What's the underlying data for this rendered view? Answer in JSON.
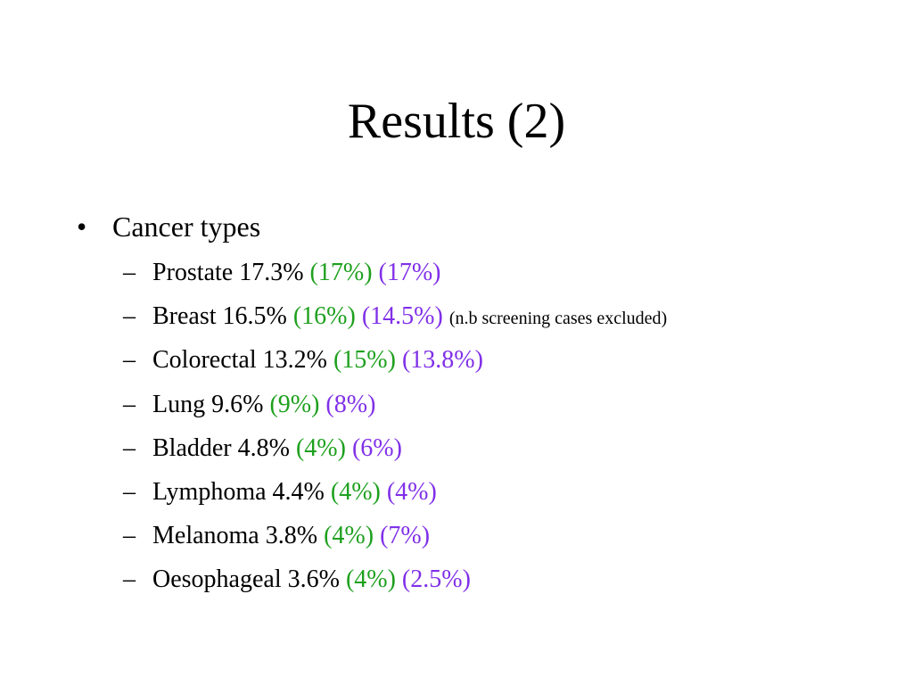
{
  "slide": {
    "title": "Results (2)",
    "bullet": {
      "marker": "•",
      "label": "Cancer types"
    },
    "sub_marker": "–",
    "colors": {
      "green_values": "#1ea01e",
      "purple_values": "#8030e8"
    },
    "items": [
      {
        "name": "Prostate",
        "value": "17.3%",
        "green": "(17%)",
        "purple": "(17%)",
        "note": ""
      },
      {
        "name": "Breast",
        "value": "16.5%",
        "green": "(16%)",
        "purple": "(14.5%)",
        "note": "(n.b screening cases excluded)"
      },
      {
        "name": "Colorectal",
        "value": "13.2%",
        "green": "(15%)",
        "purple": "(13.8%)",
        "note": ""
      },
      {
        "name": "Lung",
        "value": "9.6%",
        "green": "(9%)",
        "purple": "(8%)",
        "note": ""
      },
      {
        "name": "Bladder",
        "value": "4.8%",
        "green": "(4%)",
        "purple": "(6%)",
        "note": ""
      },
      {
        "name": "Lymphoma",
        "value": "4.4%",
        "green": "(4%)",
        "purple": "(4%)",
        "note": ""
      },
      {
        "name": "Melanoma",
        "value": "3.8%",
        "green": "(4%)",
        "purple": "(7%)",
        "note": ""
      },
      {
        "name": "Oesophageal",
        "value": "3.6%",
        "green": "(4%)",
        "purple": "(2.5%)",
        "note": ""
      }
    ]
  }
}
